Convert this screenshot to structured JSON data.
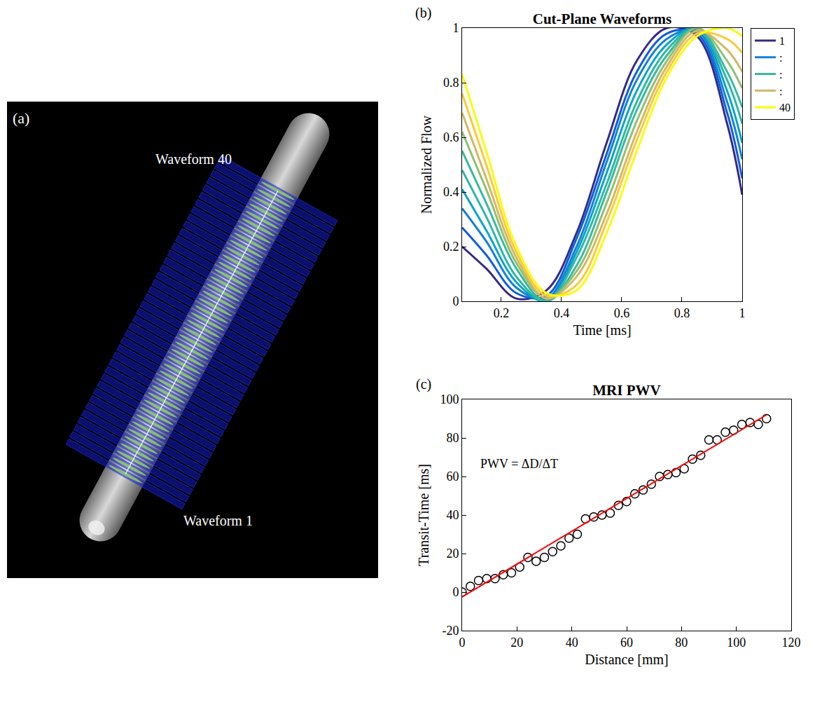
{
  "image_panel": {
    "panel": "(a)",
    "labels": [
      "Waveform 40",
      "Waveform 1"
    ]
  },
  "chart_data": [
    {
      "type": "line",
      "panel": "(b)",
      "title": "Cut-Plane Waveforms",
      "x_label": "Time [ms]",
      "y_label": "Normalized Flow",
      "x": [
        0.07,
        0.15,
        0.25,
        0.35,
        0.45,
        0.55,
        0.65,
        0.75,
        0.85,
        0.95,
        1.0
      ],
      "series": [
        {
          "name": "1",
          "color": "#352a87",
          "values": [
            0.2,
            0.12,
            0.01,
            0.04,
            0.25,
            0.58,
            0.88,
            1.0,
            0.97,
            0.65,
            0.39
          ]
        },
        {
          "color": "#0f5cdd",
          "values": [
            0.27,
            0.17,
            0.03,
            0.02,
            0.23,
            0.54,
            0.84,
            0.98,
            0.98,
            0.69,
            0.45
          ]
        },
        {
          "name": ":",
          "color": "#1481d6",
          "values": [
            0.34,
            0.22,
            0.05,
            0.01,
            0.2,
            0.51,
            0.81,
            0.96,
            0.99,
            0.73,
            0.52
          ]
        },
        {
          "color": "#06a4ca",
          "values": [
            0.41,
            0.26,
            0.07,
            0.0,
            0.18,
            0.47,
            0.77,
            0.94,
            1.0,
            0.77,
            0.58
          ]
        },
        {
          "color": "#2eb7a4",
          "values": [
            0.48,
            0.31,
            0.09,
            0.0,
            0.16,
            0.43,
            0.73,
            0.92,
            1.0,
            0.81,
            0.65
          ]
        },
        {
          "name": ":",
          "color": "#38b99e",
          "values": [
            0.55,
            0.36,
            0.12,
            0.0,
            0.13,
            0.4,
            0.7,
            0.9,
            1.0,
            0.84,
            0.71
          ]
        },
        {
          "color": "#92bf73",
          "values": [
            0.62,
            0.41,
            0.14,
            0.01,
            0.11,
            0.36,
            0.66,
            0.88,
            1.0,
            0.88,
            0.78
          ]
        },
        {
          "name": ":",
          "color": "#d1b866",
          "values": [
            0.69,
            0.45,
            0.16,
            0.01,
            0.09,
            0.32,
            0.62,
            0.86,
            0.99,
            0.92,
            0.84
          ]
        },
        {
          "color": "#fbc93a",
          "values": [
            0.76,
            0.5,
            0.18,
            0.02,
            0.06,
            0.29,
            0.59,
            0.84,
            0.98,
            0.96,
            0.91
          ]
        },
        {
          "name": "40",
          "color": "#f9fb0e",
          "values": [
            0.83,
            0.55,
            0.2,
            0.03,
            0.04,
            0.25,
            0.55,
            0.82,
            0.97,
            1.0,
            0.97
          ]
        }
      ],
      "xlim": [
        0.07,
        1
      ],
      "xticks": [
        0.2,
        0.4,
        0.6,
        0.8,
        1
      ],
      "ylim": [
        0,
        1
      ],
      "yticks": [
        0,
        0.2,
        0.4,
        0.6,
        0.8,
        1
      ],
      "grid": false,
      "legend": "right"
    },
    {
      "type": "scatter",
      "panel": "(c)",
      "title": "MRI PWV",
      "x_label": "Distance [mm]",
      "y_label": "Transit-Time [ms]",
      "annotation": "PWV = ΔD/ΔT",
      "x": [
        0,
        3,
        6,
        9,
        12,
        15,
        18,
        21,
        24,
        27,
        30,
        33,
        36,
        39,
        42,
        45,
        48,
        51,
        54,
        57,
        60,
        63,
        66,
        69,
        72,
        75,
        78,
        81,
        84,
        87,
        90,
        93,
        96,
        99,
        102,
        105,
        108,
        111
      ],
      "series": [
        {
          "color": "#000000",
          "marker": "open circle",
          "values": [
            0,
            3,
            6,
            7,
            7,
            9,
            10,
            13,
            18,
            16,
            18,
            21,
            24,
            28,
            30,
            38,
            39,
            40,
            41,
            45,
            47,
            51,
            53,
            56,
            60,
            61,
            62,
            64,
            69,
            71,
            79,
            79,
            83,
            84,
            87,
            88,
            87,
            90
          ]
        },
        {
          "type": "line",
          "color": "#ff0000",
          "x": [
            0,
            111
          ],
          "values": [
            -2.5,
            92
          ]
        }
      ],
      "xlim": [
        0,
        120
      ],
      "xticks": [
        0,
        20,
        40,
        60,
        80,
        100,
        120
      ],
      "ylim": [
        -20,
        100
      ],
      "yticks": [
        -20,
        0,
        20,
        40,
        60,
        80,
        100
      ],
      "grid": false
    }
  ]
}
